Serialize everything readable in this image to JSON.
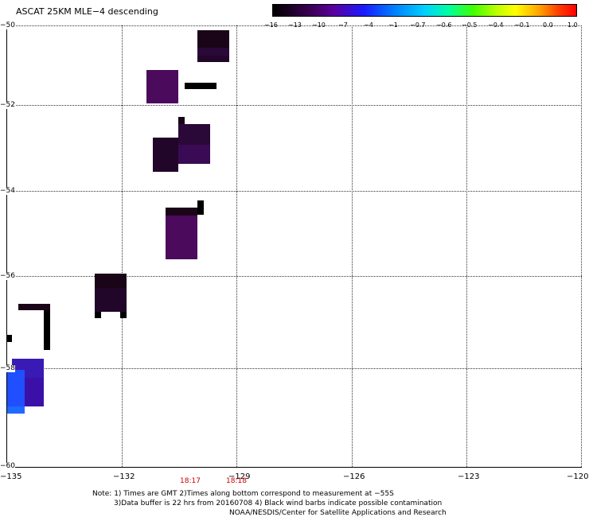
{
  "title": "ASCAT 25KM MLE−4 descending",
  "colorbar": {
    "labels": [
      "−16",
      "−13",
      "−10",
      "−7",
      "−4",
      "−1",
      "−0.7",
      "−0.6",
      "−0.5",
      "−0.4",
      "−0.1",
      "0.0",
      "1.0"
    ]
  },
  "axes": {
    "x_ticks": [
      "−135",
      "−132",
      "−129",
      "−126",
      "−123",
      "−120"
    ],
    "y_ticks": [
      "−50",
      "−52",
      "−54",
      "−56",
      "−58",
      "−60"
    ],
    "x_range": [
      -135,
      -120
    ],
    "y_range": [
      -60,
      -50
    ]
  },
  "times": [
    "18:17",
    "18:18"
  ],
  "notes": {
    "line1": "Note: 1) Times are GMT 2)Times along bottom correspond to measurement at −55S",
    "line2": "3)Data buffer is 22 hrs from 20160708 4) Black wind barbs indicate possible contamination",
    "line3": "NOAA/NESDIS/Center for Satellite Applications and Research"
  },
  "colors": {
    "dark": "#1a0418",
    "purple": "#4b0a5c",
    "violet": "#3a0a64",
    "blue": "#1f4fff",
    "indigo": "#3a1ab4"
  }
}
